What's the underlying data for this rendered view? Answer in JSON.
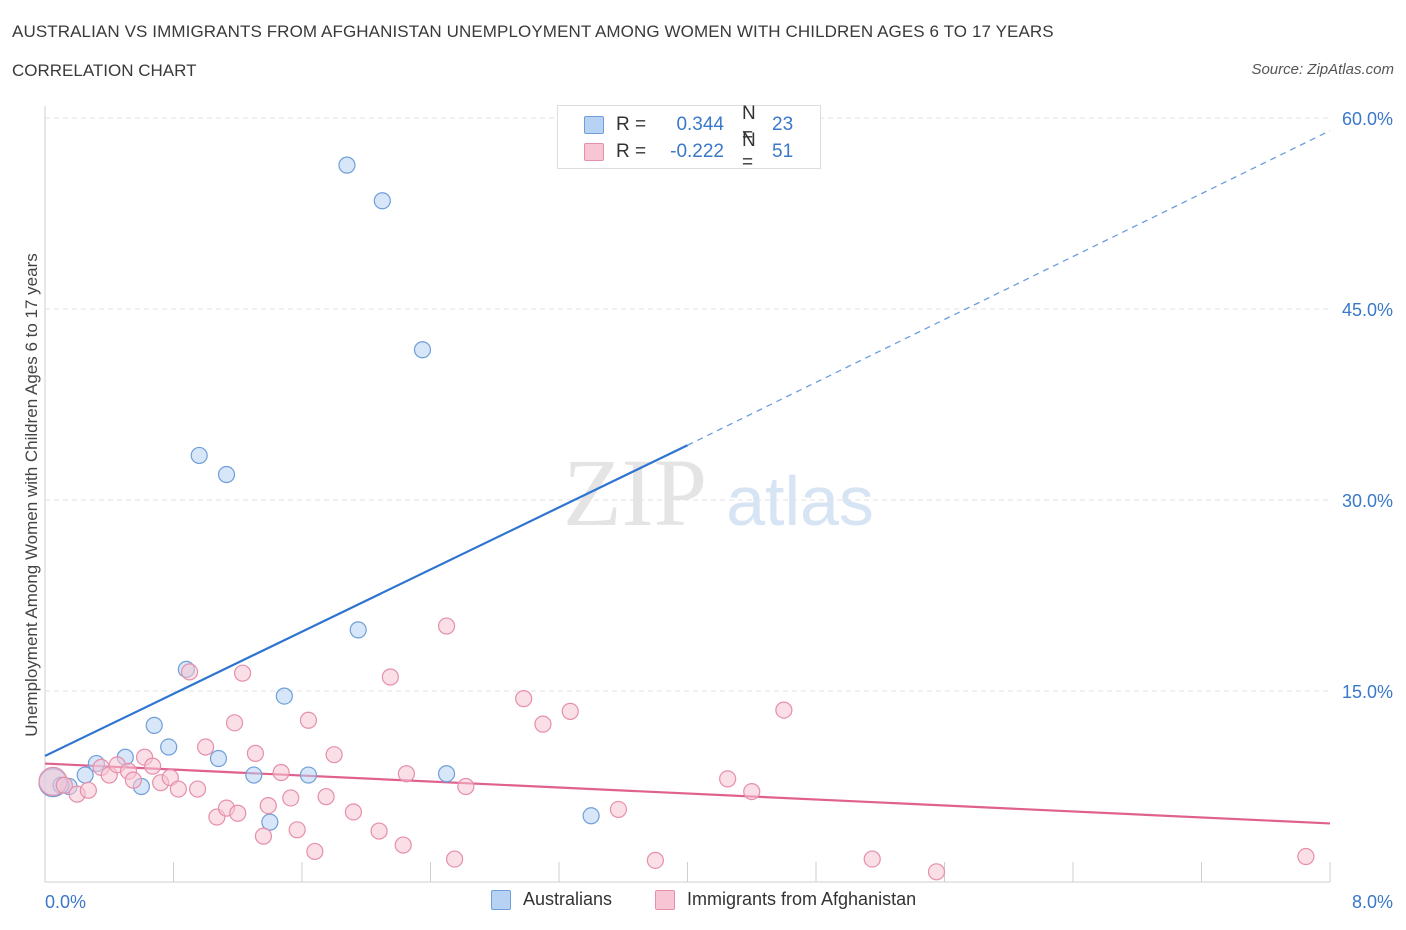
{
  "title": "AUSTRALIAN VS IMMIGRANTS FROM AFGHANISTAN UNEMPLOYMENT AMONG WOMEN WITH CHILDREN AGES 6 TO 17 YEARS",
  "subtitle": "CORRELATION CHART",
  "source": "Source: ZipAtlas.com",
  "watermark": {
    "zip": "ZIP",
    "atlas": "atlas"
  },
  "legend": {
    "r_label": "R =",
    "n_label": "N =",
    "rows": [
      {
        "r": "0.344",
        "n": "23",
        "fill": "#b7d2f3",
        "stroke": "#6f9fd8"
      },
      {
        "r": "-0.222",
        "n": "51",
        "fill": "#f7c5d3",
        "stroke": "#e58fab"
      }
    ]
  },
  "bottom_legend": [
    "Australians",
    "Immigrants from Afghanistan"
  ],
  "chart_data": {
    "type": "scatter",
    "title": "AUSTRALIAN VS IMMIGRANTS FROM AFGHANISTAN UNEMPLOYMENT AMONG WOMEN WITH CHILDREN AGES 6 TO 17 YEARS",
    "ylabel": "Unemployment Among Women with Children Ages 6 to 17 years",
    "xlabel": "",
    "xlim": [
      0,
      8
    ],
    "ylim": [
      0,
      60
    ],
    "x_tick_labels": [
      "0.0%",
      "8.0%"
    ],
    "y_ticks": [
      15,
      30,
      45,
      60
    ],
    "y_tick_labels": [
      "15.0%",
      "30.0%",
      "45.0%",
      "60.0%"
    ],
    "grid": true,
    "legend_position": "top-center",
    "series": [
      {
        "name": "Australians",
        "color": "#6f9fd8",
        "fill": "#b7d2f3",
        "line_color": "#2e74d0",
        "trend": {
          "x0": 0.0,
          "y0": 9.9,
          "x1": 4.0,
          "y1": 34.3,
          "dashed_to_x": 8.0,
          "dashed_to_y": 59.0
        },
        "points": [
          {
            "x": 0.05,
            "y": 7.8,
            "big": true
          },
          {
            "x": 0.15,
            "y": 7.5
          },
          {
            "x": 0.25,
            "y": 8.4
          },
          {
            "x": 0.32,
            "y": 9.3
          },
          {
            "x": 0.5,
            "y": 9.8
          },
          {
            "x": 0.6,
            "y": 7.5
          },
          {
            "x": 0.68,
            "y": 12.3
          },
          {
            "x": 0.77,
            "y": 10.6
          },
          {
            "x": 0.88,
            "y": 16.7
          },
          {
            "x": 0.96,
            "y": 33.5
          },
          {
            "x": 1.08,
            "y": 9.7
          },
          {
            "x": 1.13,
            "y": 32.0
          },
          {
            "x": 1.3,
            "y": 8.4
          },
          {
            "x": 1.4,
            "y": 4.7
          },
          {
            "x": 1.49,
            "y": 14.6
          },
          {
            "x": 1.64,
            "y": 8.4
          },
          {
            "x": 1.88,
            "y": 56.3
          },
          {
            "x": 1.95,
            "y": 19.8
          },
          {
            "x": 2.1,
            "y": 53.5
          },
          {
            "x": 2.35,
            "y": 41.8
          },
          {
            "x": 2.5,
            "y": 8.5
          },
          {
            "x": 3.4,
            "y": 5.2
          },
          {
            "x": 0.1,
            "y": 7.6
          }
        ]
      },
      {
        "name": "Immigrants from Afghanistan",
        "color": "#e58fab",
        "fill": "#f7c5d3",
        "line_color": "#e0608e",
        "trend": {
          "x0": 0.0,
          "y0": 9.3,
          "x1": 8.0,
          "y1": 4.6
        },
        "points": [
          {
            "x": 0.05,
            "y": 7.9,
            "big": true
          },
          {
            "x": 0.12,
            "y": 7.6
          },
          {
            "x": 0.2,
            "y": 6.9
          },
          {
            "x": 0.27,
            "y": 7.2
          },
          {
            "x": 0.35,
            "y": 9.0
          },
          {
            "x": 0.4,
            "y": 8.4
          },
          {
            "x": 0.45,
            "y": 9.2
          },
          {
            "x": 0.52,
            "y": 8.7
          },
          {
            "x": 0.55,
            "y": 8.0
          },
          {
            "x": 0.62,
            "y": 9.8
          },
          {
            "x": 0.67,
            "y": 9.1
          },
          {
            "x": 0.72,
            "y": 7.8
          },
          {
            "x": 0.78,
            "y": 8.2
          },
          {
            "x": 0.83,
            "y": 7.3
          },
          {
            "x": 0.9,
            "y": 16.5
          },
          {
            "x": 0.95,
            "y": 7.3
          },
          {
            "x": 1.0,
            "y": 10.6
          },
          {
            "x": 1.07,
            "y": 5.1
          },
          {
            "x": 1.13,
            "y": 5.8
          },
          {
            "x": 1.18,
            "y": 12.5
          },
          {
            "x": 1.23,
            "y": 16.4
          },
          {
            "x": 1.31,
            "y": 10.1
          },
          {
            "x": 1.36,
            "y": 3.6
          },
          {
            "x": 1.39,
            "y": 6.0
          },
          {
            "x": 1.47,
            "y": 8.6
          },
          {
            "x": 1.53,
            "y": 6.6
          },
          {
            "x": 1.57,
            "y": 4.1
          },
          {
            "x": 1.64,
            "y": 12.7
          },
          {
            "x": 1.68,
            "y": 2.4
          },
          {
            "x": 1.75,
            "y": 6.7
          },
          {
            "x": 1.8,
            "y": 10.0
          },
          {
            "x": 1.92,
            "y": 5.5
          },
          {
            "x": 2.08,
            "y": 4.0
          },
          {
            "x": 2.15,
            "y": 16.1
          },
          {
            "x": 2.23,
            "y": 2.9
          },
          {
            "x": 2.25,
            "y": 8.5
          },
          {
            "x": 2.55,
            "y": 1.8
          },
          {
            "x": 2.5,
            "y": 20.1
          },
          {
            "x": 2.62,
            "y": 7.5
          },
          {
            "x": 2.98,
            "y": 14.4
          },
          {
            "x": 3.1,
            "y": 12.4
          },
          {
            "x": 3.27,
            "y": 13.4
          },
          {
            "x": 3.57,
            "y": 5.7
          },
          {
            "x": 3.8,
            "y": 1.7
          },
          {
            "x": 4.25,
            "y": 8.1
          },
          {
            "x": 4.4,
            "y": 7.1
          },
          {
            "x": 4.6,
            "y": 13.5
          },
          {
            "x": 5.15,
            "y": 1.8
          },
          {
            "x": 5.55,
            "y": 0.8
          },
          {
            "x": 7.85,
            "y": 2.0
          },
          {
            "x": 1.2,
            "y": 5.4
          }
        ]
      }
    ]
  }
}
